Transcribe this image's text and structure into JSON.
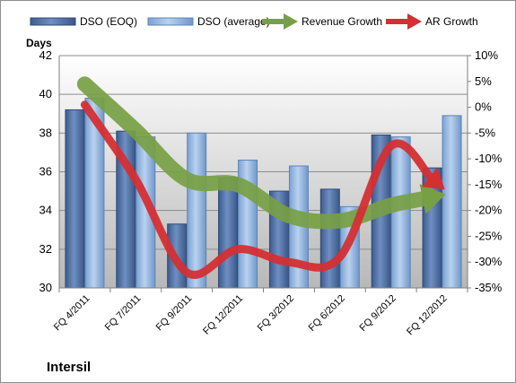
{
  "chart_data": {
    "type": "bar",
    "company": "Intersil",
    "categories": [
      "FQ 4/2011",
      "FQ 7/2011",
      "FQ 9/2011",
      "FQ 12/2011",
      "FQ 3/2012",
      "FQ 6/2012",
      "FQ 9/2012",
      "FQ 12/2012"
    ],
    "ylabel": "Days",
    "ylim": [
      30,
      42
    ],
    "yticks": [
      "30",
      "32",
      "34",
      "36",
      "38",
      "40",
      "42"
    ],
    "y2lim": [
      -35,
      10
    ],
    "y2ticks": [
      "-35%",
      "-30%",
      "-25%",
      "-20%",
      "-15%",
      "-10%",
      "-5%",
      "0%",
      "5%",
      "10%"
    ],
    "legend_position": "top",
    "series": [
      {
        "name": "DSO (EOQ)",
        "kind": "bar",
        "axis": "left",
        "color": "#4f6ea3",
        "values": [
          39.2,
          38.1,
          33.3,
          35.7,
          35.0,
          35.1,
          37.9,
          36.2
        ]
      },
      {
        "name": "DSO (average)",
        "kind": "bar",
        "axis": "left",
        "color": "#8fb3de",
        "values": [
          39.8,
          37.8,
          38.0,
          36.6,
          36.3,
          34.2,
          37.8,
          38.9
        ]
      },
      {
        "name": "Revenue Growth",
        "kind": "line-arrow",
        "axis": "right",
        "color": "#77a044",
        "values": [
          4.5,
          -4.5,
          -14.0,
          -15.0,
          -21.0,
          -22.0,
          -19.0,
          -17.0
        ]
      },
      {
        "name": "AR Growth",
        "kind": "line-arrow",
        "axis": "right",
        "color": "#d42f33",
        "values": [
          0.5,
          -14.0,
          -32.0,
          -27.5,
          -30.0,
          -29.0,
          -7.5,
          -15.5
        ]
      }
    ]
  }
}
